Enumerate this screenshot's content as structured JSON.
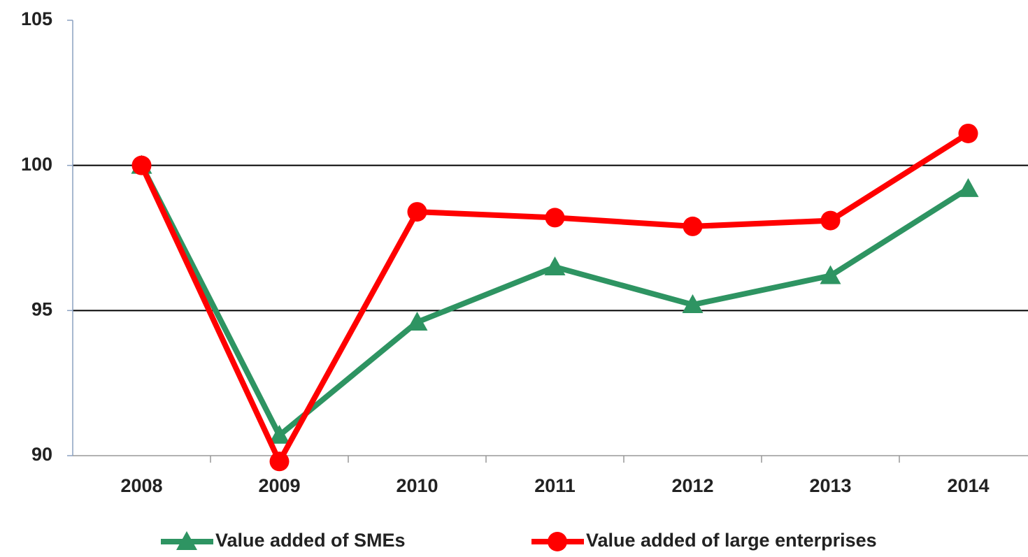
{
  "chart_data": {
    "type": "line",
    "categories": [
      "2008",
      "2009",
      "2010",
      "2011",
      "2012",
      "2013",
      "2014"
    ],
    "series": [
      {
        "name": "Value added of SMEs",
        "color": "#2e9462",
        "marker": "triangle",
        "values": [
          100,
          90.7,
          94.6,
          96.5,
          95.2,
          96.2,
          99.2
        ]
      },
      {
        "name": "Value added of large enterprises",
        "color": "#ff0000",
        "marker": "circle",
        "values": [
          100,
          89.8,
          98.4,
          98.2,
          97.9,
          98.1,
          101.1
        ]
      }
    ],
    "ylim": [
      90,
      105
    ],
    "yticks": [
      90,
      95,
      100,
      105
    ],
    "grid": true,
    "legend": "bottom"
  }
}
